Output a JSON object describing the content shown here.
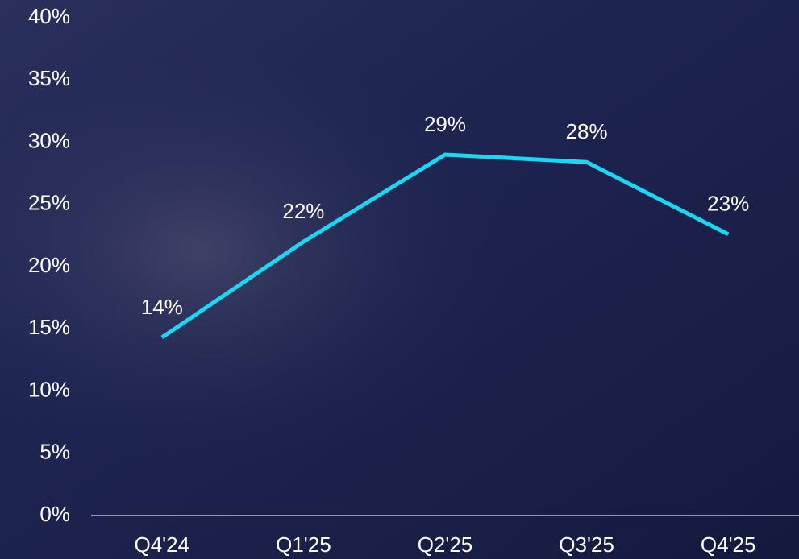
{
  "chart_data": {
    "type": "line",
    "categories": [
      "Q4'24",
      "Q1'25",
      "Q2'25",
      "Q3'25",
      "Q4'25"
    ],
    "values": [
      14.3,
      22,
      29,
      28.4,
      22.6
    ],
    "value_labels": [
      "14%",
      "22%",
      "29%",
      "28%",
      "23%"
    ],
    "color": "#1ad8f2",
    "ylim": [
      0,
      40
    ],
    "yticks": [
      {
        "value": 0,
        "label": "0%"
      },
      {
        "value": 5,
        "label": "5%"
      },
      {
        "value": 10,
        "label": "10%"
      },
      {
        "value": 15,
        "label": "15%"
      },
      {
        "value": 20,
        "label": "20%"
      },
      {
        "value": 25,
        "label": "25%"
      },
      {
        "value": 30,
        "label": "30%"
      },
      {
        "value": 35,
        "label": "35%"
      },
      {
        "value": 40,
        "label": "40%"
      }
    ]
  }
}
